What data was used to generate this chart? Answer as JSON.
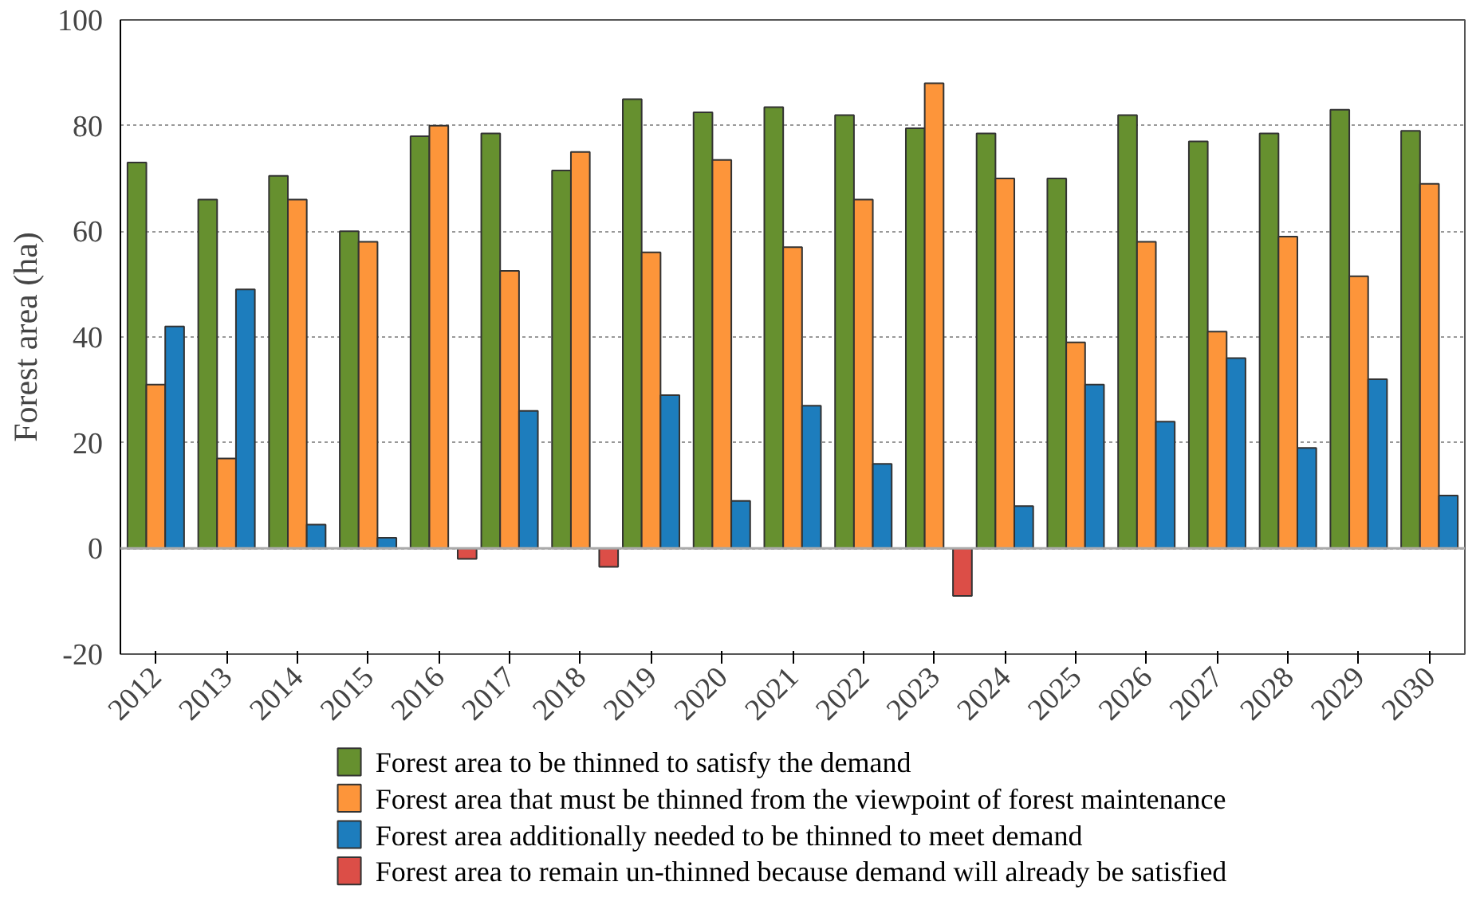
{
  "chart_data": {
    "type": "bar",
    "ylabel": "Forest area (ha)",
    "categories": [
      "2012",
      "2013",
      "2014",
      "2015",
      "2016",
      "2017",
      "2018",
      "2019",
      "2020",
      "2021",
      "2022",
      "2023",
      "2024",
      "2025",
      "2026",
      "2027",
      "2028",
      "2029",
      "2030"
    ],
    "series": [
      {
        "name": "Forest area to be thinned to satisfy the demand",
        "color": "#66902f",
        "values": [
          73,
          66,
          70.5,
          60,
          78,
          78.5,
          71.5,
          85,
          82.5,
          83.5,
          82,
          79.5,
          78.5,
          70,
          82,
          77,
          78.5,
          83,
          79
        ]
      },
      {
        "name": "Forest area that must be thinned from the viewpoint of forest maintenance",
        "color": "#fd953a",
        "values": [
          31,
          17,
          66,
          58,
          80,
          52.5,
          75,
          56,
          73.5,
          57,
          66,
          88,
          70,
          39,
          58,
          41,
          59,
          51.5,
          69
        ]
      },
      {
        "name": "Forest area additionally needed to be thinned to meet demand",
        "color": "#1d7dbd",
        "values": [
          42,
          49,
          4.5,
          2,
          null,
          26,
          null,
          29,
          9,
          27,
          16,
          null,
          8,
          31,
          24,
          36,
          19,
          32,
          10
        ]
      },
      {
        "name": "Forest area to remain un-thinned because demand will already be satisfied",
        "color": "#dc4e47",
        "values": [
          null,
          null,
          null,
          null,
          -2,
          null,
          -3.5,
          null,
          null,
          null,
          null,
          -9,
          null,
          null,
          null,
          null,
          null,
          null,
          null
        ]
      }
    ],
    "ylim": [
      -20,
      100
    ],
    "yticks": [
      -20,
      0,
      20,
      40,
      60,
      80,
      100
    ],
    "grid": "y",
    "legend": "bottom"
  }
}
